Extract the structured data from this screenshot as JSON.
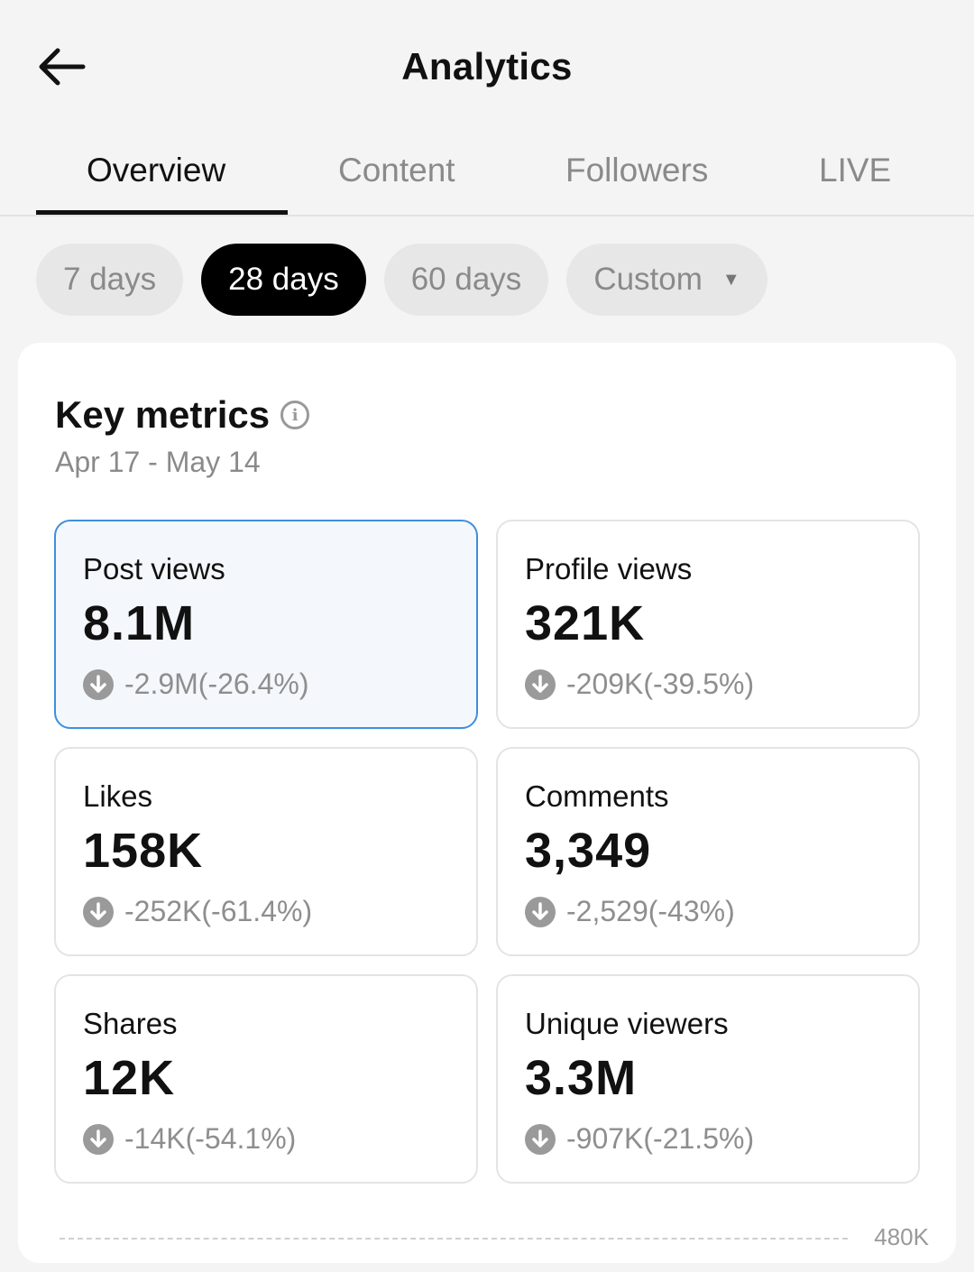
{
  "header": {
    "title": "Analytics"
  },
  "tabs": [
    {
      "label": "Overview",
      "active": true
    },
    {
      "label": "Content",
      "active": false
    },
    {
      "label": "Followers",
      "active": false
    },
    {
      "label": "LIVE",
      "active": false
    }
  ],
  "range_chips": [
    {
      "label": "7 days",
      "selected": false
    },
    {
      "label": "28 days",
      "selected": true
    },
    {
      "label": "60 days",
      "selected": false
    },
    {
      "label": "Custom",
      "selected": false
    }
  ],
  "key_metrics": {
    "title": "Key metrics",
    "date_range": "Apr 17 - May 14",
    "metrics": [
      {
        "label": "Post views",
        "value": "8.1M",
        "change": "-2.9M(-26.4%)",
        "active": true
      },
      {
        "label": "Profile views",
        "value": "321K",
        "change": "-209K(-39.5%)",
        "active": false
      },
      {
        "label": "Likes",
        "value": "158K",
        "change": "-252K(-61.4%)",
        "active": false
      },
      {
        "label": "Comments",
        "value": "3,349",
        "change": "-2,529(-43%)",
        "active": false
      },
      {
        "label": "Shares",
        "value": "12K",
        "change": "-14K(-54.1%)",
        "active": false
      },
      {
        "label": "Unique viewers",
        "value": "3.3M",
        "change": "-907K(-21.5%)",
        "active": false
      }
    ],
    "chart_top_tick": "480K"
  },
  "colors": {
    "active_border": "#3d8fdc",
    "active_bg": "#f4f8fc",
    "selected_chip": "#000000"
  }
}
